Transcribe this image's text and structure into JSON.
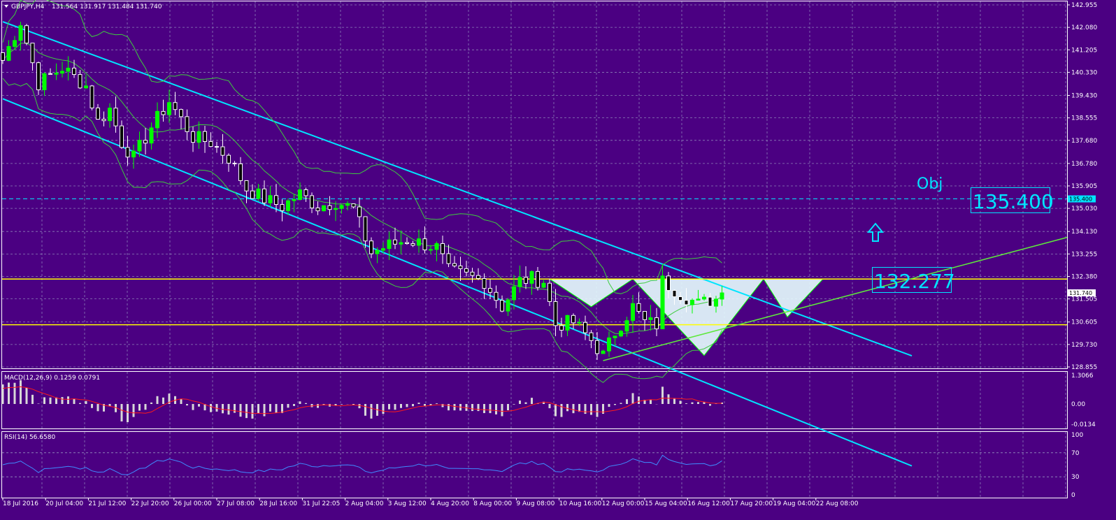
{
  "header": {
    "symbol": "GBPJPY,H4",
    "ohlc": "131.564 131.917 131.484 131.740"
  },
  "colors": {
    "background": "#4b0082",
    "grid": "#8c7fb8",
    "bull": "#00ff00",
    "bear": "#ffffff",
    "channel": "#00e5ff",
    "bands": "#3fcc3f",
    "level": "#ffff00",
    "trendline": "#5ee83c",
    "macd_hist": "#d8d8d8",
    "macd_signal": "#ff1a1a",
    "rsi_line": "#3f8cff"
  },
  "annotations": {
    "objective_label": "Obj",
    "objective_value": "135.400",
    "neckline_value": "132.277",
    "up_arrow_icon": "up-arrow-icon"
  },
  "chart_data": [
    {
      "type": "candlestick",
      "symbol": "GBPJPY",
      "timeframe": "H4",
      "ylim": [
        128.855,
        142.955
      ],
      "price_scale_ticks": [
        "142.955",
        "142.080",
        "141.205",
        "140.330",
        "139.430",
        "138.555",
        "137.680",
        "136.780",
        "135.905",
        "135.030",
        "134.130",
        "133.255",
        "132.380",
        "131.505",
        "130.605",
        "129.730",
        "128.855"
      ],
      "current_price_tag": "131.740",
      "objective_tag": "135.400",
      "time_labels": [
        "18 Jul 2016",
        "20 Jul 04:00",
        "21 Jul 12:00",
        "22 Jul 20:00",
        "26 Jul 00:00",
        "27 Jul 08:00",
        "28 Jul 16:00",
        "31 Jul 22:05",
        "2 Aug 04:00",
        "3 Aug 12:00",
        "4 Aug 20:00",
        "8 Aug 00:00",
        "9 Aug 08:00",
        "10 Aug 16:00",
        "12 Aug 00:00",
        "15 Aug 04:00",
        "16 Aug 12:00",
        "17 Aug 20:00",
        "19 Aug 04:00",
        "22 Aug 08:00"
      ],
      "price_path": [
        [
          0,
          140.8
        ],
        [
          3,
          142.3
        ],
        [
          6,
          139.9
        ],
        [
          10,
          140.5
        ],
        [
          14,
          139.8
        ],
        [
          16,
          138.4
        ],
        [
          18,
          138.9
        ],
        [
          20,
          137.6
        ],
        [
          22,
          137.0
        ],
        [
          25,
          138.2
        ],
        [
          28,
          139.2
        ],
        [
          32,
          137.8
        ],
        [
          35,
          137.6
        ],
        [
          38,
          137.0
        ],
        [
          41,
          135.8
        ],
        [
          44,
          135.4
        ],
        [
          47,
          135.1
        ],
        [
          50,
          135.6
        ],
        [
          53,
          135.1
        ],
        [
          56,
          135.3
        ],
        [
          59,
          135.0
        ],
        [
          62,
          133.3
        ],
        [
          65,
          133.6
        ],
        [
          68,
          133.8
        ],
        [
          70,
          133.7
        ],
        [
          73,
          133.5
        ],
        [
          75,
          132.6
        ],
        [
          78,
          132.4
        ],
        [
          81,
          132.2
        ],
        [
          84,
          131.2
        ],
        [
          87,
          132.2
        ],
        [
          89,
          132.3
        ],
        [
          91,
          132.2
        ],
        [
          93,
          130.5
        ],
        [
          96,
          130.6
        ],
        [
          99,
          129.9
        ],
        [
          101,
          129.3
        ],
        [
          103,
          130.2
        ],
        [
          106,
          131.2
        ],
        [
          108,
          130.6
        ],
        [
          110,
          130.5
        ],
        [
          111,
          132.2
        ],
        [
          114,
          131.7
        ],
        [
          117,
          131.3
        ],
        [
          120,
          131.5
        ],
        [
          121,
          131.74
        ]
      ],
      "horizontal_levels": [
        132.277,
        130.5,
        135.4
      ],
      "regression_channel": {
        "upper": [
          [
            0,
            142.3
          ],
          [
            120,
            128.8
          ]
        ],
        "lower": [
          [
            0,
            139.3
          ],
          [
            120,
            125.0
          ]
        ]
      },
      "ascending_trendline": [
        [
          101,
          129.1
        ],
        [
          150,
          133.9
        ]
      ],
      "bollinger_bands": true,
      "pattern": "inverse head and shoulders"
    },
    {
      "type": "histogram",
      "title": "MACD(12,26,9) 0.1259 0.0791",
      "ylim": [
        -0.0134,
        1.3066
      ],
      "ticks": [
        "1.3066",
        "0.00",
        "-0.0134"
      ],
      "series": [
        {
          "name": "MACD"
        },
        {
          "name": "Signal"
        }
      ]
    },
    {
      "type": "line",
      "title": "RSI(14) 56.6580",
      "ylim": [
        0,
        100
      ],
      "ticks": [
        "100",
        "70",
        "30",
        "0"
      ],
      "last_value": 56.658
    }
  ]
}
